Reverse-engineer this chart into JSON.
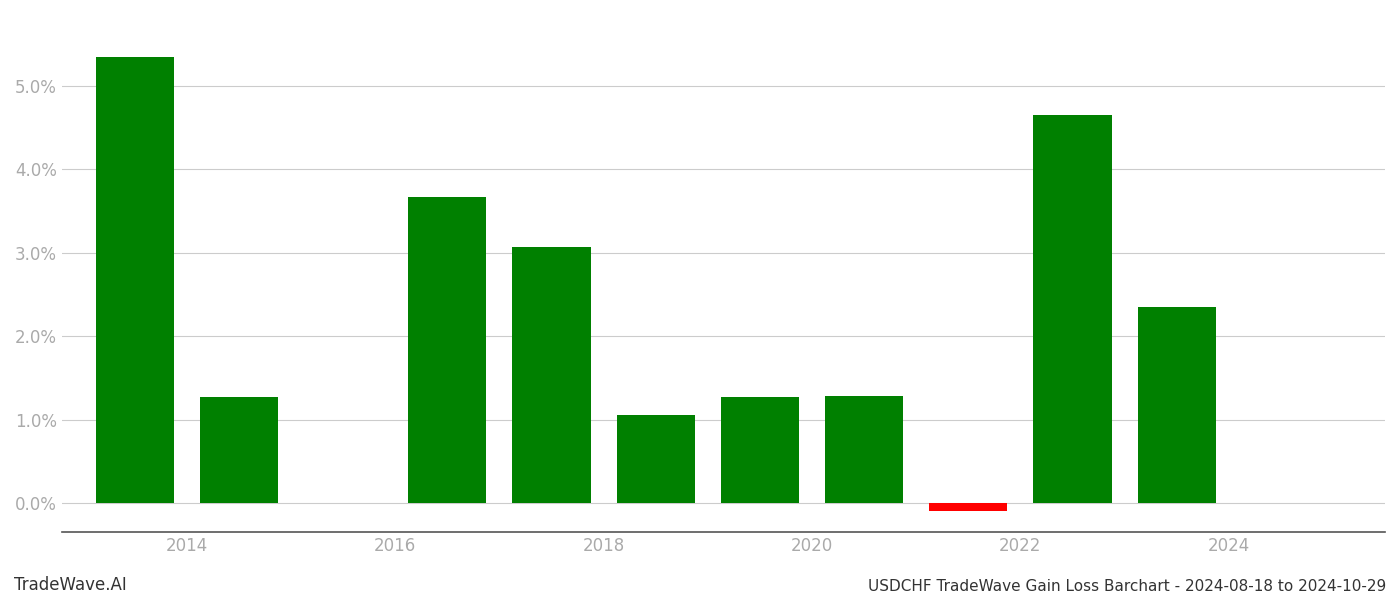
{
  "years": [
    2013,
    2014,
    2016,
    2017,
    2018,
    2019,
    2020,
    2021,
    2022,
    2023
  ],
  "values": [
    5.35,
    1.27,
    3.67,
    3.07,
    1.06,
    1.27,
    1.28,
    -0.1,
    4.65,
    2.35
  ],
  "colors": [
    "#008000",
    "#008000",
    "#008000",
    "#008000",
    "#008000",
    "#008000",
    "#008000",
    "#ff0000",
    "#008000",
    "#008000"
  ],
  "xtick_positions": [
    2013.5,
    2015.5,
    2017.5,
    2019.5,
    2021.5,
    2023.5
  ],
  "xtick_labels": [
    "2014",
    "2016",
    "2018",
    "2020",
    "2022",
    "2024"
  ],
  "ytick_values": [
    0.0,
    1.0,
    2.0,
    3.0,
    4.0,
    5.0
  ],
  "ytick_labels": [
    "0.0%",
    "1.0%",
    "2.0%",
    "3.0%",
    "4.0%",
    "5.0%"
  ],
  "ylim": [
    -0.35,
    5.85
  ],
  "xlim": [
    2012.3,
    2025.0
  ],
  "bar_width": 0.75,
  "background_color": "#ffffff",
  "grid_color": "#cccccc",
  "title_text": "USDCHF TradeWave Gain Loss Barchart - 2024-08-18 to 2024-10-29",
  "watermark_text": "TradeWave.AI",
  "title_fontsize": 11,
  "watermark_fontsize": 12,
  "tick_color": "#aaaaaa",
  "spine_color": "#555555"
}
